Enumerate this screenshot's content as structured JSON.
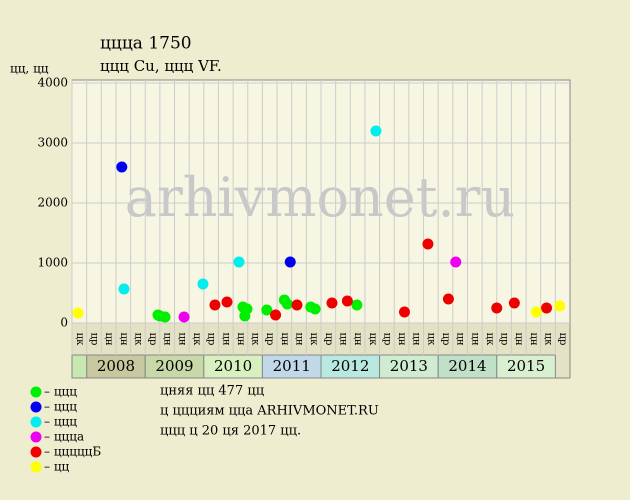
{
  "chart_data": {
    "type": "scatter",
    "title": "ццца 1750",
    "subtitle": "ццц Cu, ццц VF.",
    "y_label": "цц, цц",
    "watermark": "arhivmonet.ru",
    "notes": [
      "цняя цц 477 цц",
      "ц ццциям ццa ARHIVMONET.RU",
      "ццц ц 20 ця 2017 цц."
    ],
    "x_labels": [
      "цк",
      "цр",
      "цн",
      "цн",
      "цк",
      "цр",
      "цн",
      "цн",
      "цк",
      "цр",
      "цн",
      "цн",
      "цк",
      "цр",
      "цн",
      "цн",
      "цк",
      "цр",
      "цн",
      "цн",
      "цк",
      "цр",
      "цн",
      "цн",
      "цк",
      "цр",
      "цн",
      "цн",
      "цк",
      "цр",
      "цн",
      "цн",
      "цк",
      "цр"
    ],
    "years": [
      {
        "label": "2008",
        "color": "#c8c8a0"
      },
      {
        "label": "2009",
        "color": "#c8d8a8"
      },
      {
        "label": "2010",
        "color": "#d8f0c0"
      },
      {
        "label": "2011",
        "color": "#c0d8e8"
      },
      {
        "label": "2012",
        "color": "#b8e8e0"
      },
      {
        "label": "2013",
        "color": "#d0ecd0"
      },
      {
        "label": "2014",
        "color": "#c0e0c8"
      },
      {
        "label": "2015",
        "color": "#d8f0d0"
      }
    ],
    "xlim": [
      0,
      34
    ],
    "ylim": [
      0,
      4000
    ],
    "yticks": [
      0,
      1000,
      2000,
      3000,
      4000
    ],
    "grid": true,
    "series": [
      {
        "name": "– ццц",
        "color": "#00ee00",
        "x": [
          5.87,
          6.0,
          6.35,
          11.67,
          11.95,
          11.8,
          13.3,
          14.5,
          14.7,
          16.3,
          16.6,
          19.45
        ],
        "values": [
          133,
          117,
          100,
          267,
          233,
          117,
          217,
          383,
          317,
          267,
          233,
          300
        ]
      },
      {
        "name": "– ццц",
        "color": "#0000ee",
        "x": [
          3.4,
          14.9
        ],
        "values": [
          2600,
          1017
        ]
      },
      {
        "name": "– ццц",
        "color": "#00eeee",
        "x": [
          3.55,
          8.94,
          11.4,
          20.75
        ],
        "values": [
          567,
          650,
          1017,
          3200
        ]
      },
      {
        "name": "– ццца",
        "color": "#ee00ee",
        "x": [
          7.65,
          26.2
        ],
        "values": [
          100,
          1017
        ]
      },
      {
        "name": "– цццццБ",
        "color": "#ee0000",
        "x": [
          9.76,
          10.58,
          13.9,
          15.36,
          17.75,
          18.8,
          22.7,
          24.3,
          25.7,
          29.0,
          30.2,
          32.4
        ],
        "values": [
          300,
          350,
          133,
          300,
          333,
          367,
          183,
          1317,
          400,
          250,
          333,
          250
        ]
      },
      {
        "name": "– цц",
        "color": "#ffff00",
        "x": [
          0.41,
          31.7,
          33.3
        ],
        "values": [
          167,
          183,
          283
        ]
      }
    ]
  }
}
